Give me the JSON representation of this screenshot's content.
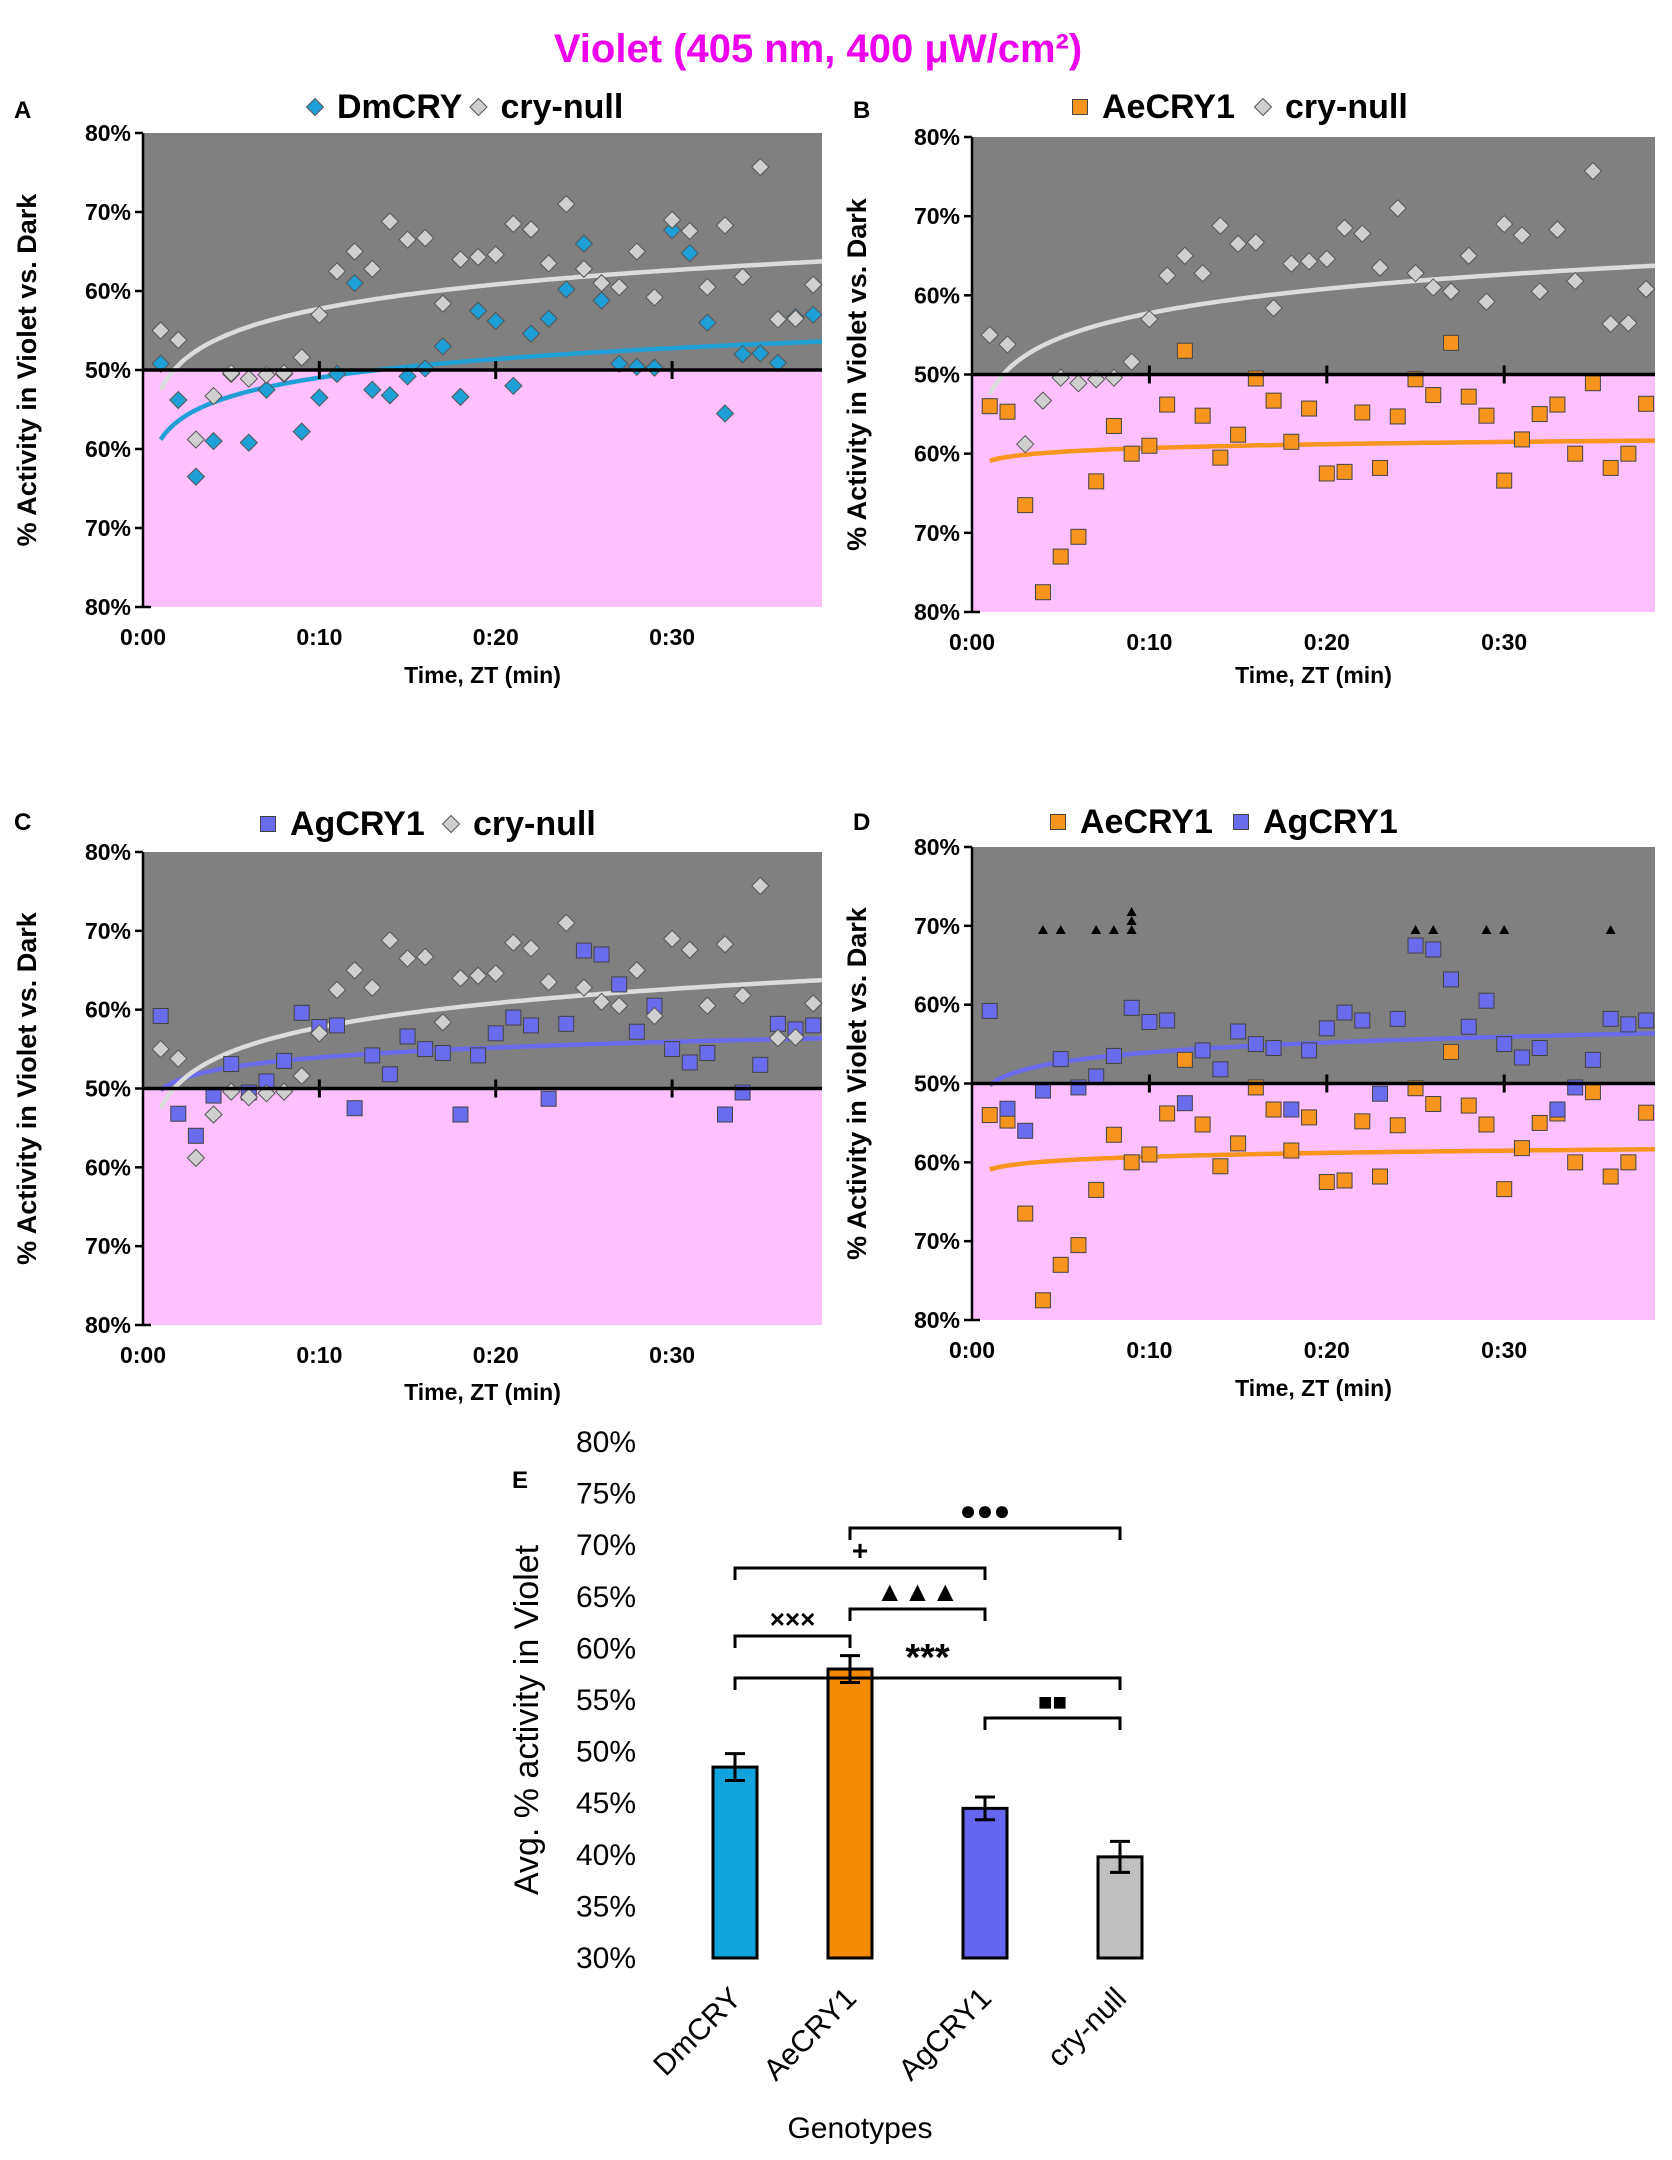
{
  "figure": {
    "title": "Violet (405 nm, 400 μW/cm²)"
  },
  "colors": {
    "title": "#ee00ee",
    "dark_region": "#808080",
    "light_region": "#ffc0ff",
    "dmcry": "#1e9fd6",
    "aecry1": "#f7941d",
    "agcry1": "#6b6bee",
    "crynull": "#cfcfcf",
    "crynull_line": "#dcdcdc",
    "dmcry_bar": "#12a3dc",
    "aecry1_bar": "#f58a06",
    "agcry1_bar": "#6565f2",
    "crynull_bar": "#c0c0c0"
  },
  "scatter_common": {
    "x_ticks": [
      "0:00",
      "0:10",
      "0:20",
      "0:30"
    ],
    "y_ticks": [
      "80%",
      "70%",
      "60%",
      "50%",
      "60%",
      "70%",
      "80%"
    ],
    "xlabel": "Time, ZT (min)",
    "ylabel": "% Activity in Violet vs. Dark"
  },
  "chart_data": [
    {
      "id": "A",
      "type": "scatter",
      "panel_label": "A",
      "legend": [
        "DmCRY",
        "cry-null"
      ],
      "x_unit": "minutes",
      "xlim": [
        0,
        38.5
      ],
      "ylim": [
        -30,
        30
      ],
      "y_note": "signed deviation from 50% baseline: above = Violet > Dark, below = Violet < Dark",
      "series": [
        {
          "name": "DmCRY",
          "marker": "diamond",
          "color_key": "dmcry",
          "x": [
            1,
            2,
            3,
            4,
            5,
            6,
            7,
            8,
            9,
            10,
            11,
            12,
            13,
            14,
            15,
            16,
            17,
            18,
            19,
            20,
            21,
            22,
            23,
            24,
            25,
            26,
            27,
            28,
            29,
            30,
            31,
            32,
            33,
            34,
            35,
            36,
            37,
            38
          ],
          "y": [
            0.8,
            -3.8,
            -13.5,
            -9,
            -0.5,
            -9.2,
            -2.5,
            -0.5,
            -7.8,
            -3.5,
            -0.5,
            11,
            -2.5,
            -3.2,
            -0.8,
            0.2,
            3,
            -3.4,
            7.5,
            6.2,
            -2,
            4.6,
            6.5,
            10.2,
            16,
            8.8,
            0.8,
            0.4,
            0.3,
            17.7,
            14.8,
            6,
            -5.5,
            2,
            2.1,
            0.9,
            6.7,
            7
          ]
        },
        {
          "name": "cry-null",
          "marker": "diamond",
          "color_key": "crynull",
          "x": [
            1,
            2,
            3,
            4,
            5,
            6,
            7,
            8,
            9,
            10,
            11,
            12,
            13,
            14,
            15,
            16,
            17,
            18,
            19,
            20,
            21,
            22,
            23,
            24,
            25,
            26,
            27,
            28,
            29,
            30,
            31,
            32,
            33,
            34,
            35,
            36,
            37,
            38
          ],
          "y": [
            5,
            3.8,
            -8.8,
            -3.3,
            -0.4,
            -1.1,
            -0.6,
            -0.4,
            1.6,
            7,
            12.5,
            15,
            12.8,
            18.8,
            16.5,
            16.7,
            8.4,
            14,
            14.3,
            14.6,
            18.5,
            17.8,
            13.5,
            21,
            12.8,
            11,
            10.5,
            15,
            9.2,
            19,
            17.6,
            10.5,
            18.3,
            11.8,
            25.7,
            6.4,
            6.5,
            10.8
          ]
        }
      ],
      "trend_lines": [
        {
          "name": "DmCRY",
          "color_key": "dmcry",
          "form": "log",
          "a": -8.8,
          "b": 3.4
        },
        {
          "name": "cry-null",
          "color_key": "crynull_line",
          "form": "log",
          "a": -2.5,
          "b": 4.45
        }
      ]
    },
    {
      "id": "B",
      "type": "scatter",
      "panel_label": "B",
      "legend": [
        "AeCRY1",
        "cry-null"
      ],
      "x_unit": "minutes",
      "xlim": [
        0,
        38.5
      ],
      "ylim": [
        -30,
        30
      ],
      "series": [
        {
          "name": "AeCRY1",
          "marker": "square",
          "color_key": "aecry1",
          "x": [
            1,
            2,
            3,
            4,
            5,
            6,
            7,
            8,
            9,
            10,
            11,
            12,
            13,
            14,
            15,
            16,
            17,
            18,
            19,
            20,
            21,
            22,
            23,
            24,
            25,
            26,
            27,
            28,
            29,
            30,
            31,
            32,
            33,
            34,
            35,
            36,
            37,
            38
          ],
          "y": [
            -4,
            -4.7,
            -16.5,
            -27.5,
            -23,
            -20.5,
            -13.5,
            -6.5,
            -10,
            -9,
            -3.8,
            3,
            -5.2,
            -10.5,
            -7.6,
            -0.5,
            -3.3,
            -8.5,
            -4.3,
            -12.5,
            -12.3,
            -4.8,
            -11.8,
            -5.3,
            -0.6,
            -2.6,
            4,
            -2.8,
            -5.2,
            -13.4,
            -8.2,
            -5,
            -3.8,
            -10,
            -1.1,
            -11.8,
            -10,
            -3.7
          ]
        },
        {
          "name": "cry-null",
          "marker": "diamond",
          "color_key": "crynull",
          "x": [
            1,
            2,
            3,
            4,
            5,
            6,
            7,
            8,
            9,
            10,
            11,
            12,
            13,
            14,
            15,
            16,
            17,
            18,
            19,
            20,
            21,
            22,
            23,
            24,
            25,
            26,
            27,
            28,
            29,
            30,
            31,
            32,
            33,
            34,
            35,
            36,
            37,
            38
          ],
          "y": [
            5,
            3.8,
            -8.8,
            -3.3,
            -0.4,
            -1.1,
            -0.6,
            -0.4,
            1.6,
            7,
            12.5,
            15,
            12.8,
            18.8,
            16.5,
            16.7,
            8.4,
            14,
            14.3,
            14.6,
            18.5,
            17.8,
            13.5,
            21,
            12.8,
            11,
            10.5,
            15,
            9.2,
            19,
            17.6,
            10.5,
            18.3,
            11.8,
            25.7,
            6.4,
            6.5,
            10.8
          ]
        }
      ],
      "trend_lines": [
        {
          "name": "AeCRY1",
          "color_key": "aecry1",
          "form": "log",
          "a": -10.9,
          "b": 0.7
        },
        {
          "name": "cry-null",
          "color_key": "crynull_line",
          "form": "log",
          "a": -2.5,
          "b": 4.45
        }
      ]
    },
    {
      "id": "C",
      "type": "scatter",
      "panel_label": "C",
      "legend": [
        "AgCRY1",
        "cry-null"
      ],
      "x_unit": "minutes",
      "xlim": [
        0,
        38.5
      ],
      "ylim": [
        -30,
        30
      ],
      "series": [
        {
          "name": "AgCRY1",
          "marker": "square",
          "color_key": "agcry1",
          "x": [
            1,
            2,
            3,
            4,
            5,
            6,
            7,
            8,
            9,
            10,
            11,
            12,
            13,
            14,
            15,
            16,
            17,
            18,
            19,
            20,
            21,
            22,
            23,
            24,
            25,
            26,
            27,
            28,
            29,
            30,
            31,
            32,
            33,
            34,
            35,
            36,
            37,
            38
          ],
          "y": [
            9.2,
            -3.2,
            -6,
            -0.9,
            3.1,
            -0.5,
            0.9,
            3.5,
            9.6,
            7.8,
            8,
            -2.5,
            4.2,
            1.8,
            6.6,
            5,
            4.5,
            -3.3,
            4.2,
            7,
            9,
            8,
            -1.3,
            8.2,
            17.5,
            17,
            13.2,
            7.2,
            10.5,
            5,
            3.3,
            4.5,
            -3.3,
            -0.5,
            3,
            8.2,
            7.5,
            8
          ]
        },
        {
          "name": "cry-null",
          "marker": "diamond",
          "color_key": "crynull",
          "x": [
            1,
            2,
            3,
            4,
            5,
            6,
            7,
            8,
            9,
            10,
            11,
            12,
            13,
            14,
            15,
            16,
            17,
            18,
            19,
            20,
            21,
            22,
            23,
            24,
            25,
            26,
            27,
            28,
            29,
            30,
            31,
            32,
            33,
            34,
            35,
            36,
            37,
            38
          ],
          "y": [
            5,
            3.8,
            -8.8,
            -3.3,
            -0.4,
            -1.1,
            -0.6,
            -0.4,
            1.6,
            7,
            12.5,
            15,
            12.8,
            18.8,
            16.5,
            16.7,
            8.4,
            14,
            14.3,
            14.6,
            18.5,
            17.8,
            13.5,
            21,
            12.8,
            11,
            10.5,
            15,
            9.2,
            19,
            17.6,
            10.5,
            18.3,
            11.8,
            25.7,
            6.4,
            6.5,
            10.8
          ]
        }
      ],
      "trend_lines": [
        {
          "name": "AgCRY1",
          "color_key": "agcry1",
          "form": "log",
          "a": -0.2,
          "b": 1.8
        },
        {
          "name": "cry-null",
          "color_key": "crynull_line",
          "form": "log",
          "a": -2.5,
          "b": 4.45
        }
      ]
    },
    {
      "id": "D",
      "type": "scatter",
      "panel_label": "D",
      "legend": [
        "AeCRY1",
        "AgCRY1"
      ],
      "x_unit": "minutes",
      "xlim": [
        0,
        38.5
      ],
      "ylim": [
        -30,
        30
      ],
      "series": [
        {
          "name": "AeCRY1",
          "marker": "square",
          "color_key": "aecry1",
          "x": [
            1,
            2,
            3,
            4,
            5,
            6,
            7,
            8,
            9,
            10,
            11,
            12,
            13,
            14,
            15,
            16,
            17,
            18,
            19,
            20,
            21,
            22,
            23,
            24,
            25,
            26,
            27,
            28,
            29,
            30,
            31,
            32,
            33,
            34,
            35,
            36,
            37,
            38
          ],
          "y": [
            -4,
            -4.7,
            -16.5,
            -27.5,
            -23,
            -20.5,
            -13.5,
            -6.5,
            -10,
            -9,
            -3.8,
            3,
            -5.2,
            -10.5,
            -7.6,
            -0.5,
            -3.3,
            -8.5,
            -4.3,
            -12.5,
            -12.3,
            -4.8,
            -11.8,
            -5.3,
            -0.6,
            -2.6,
            4,
            -2.8,
            -5.2,
            -13.4,
            -8.2,
            -5,
            -3.8,
            -10,
            -1.1,
            -11.8,
            -10,
            -3.7
          ]
        },
        {
          "name": "AgCRY1",
          "marker": "square",
          "color_key": "agcry1",
          "x": [
            1,
            2,
            3,
            4,
            5,
            6,
            7,
            8,
            9,
            10,
            11,
            12,
            13,
            14,
            15,
            16,
            17,
            18,
            19,
            20,
            21,
            22,
            23,
            24,
            25,
            26,
            27,
            28,
            29,
            30,
            31,
            32,
            33,
            34,
            35,
            36,
            37,
            38
          ],
          "y": [
            9.2,
            -3.2,
            -6,
            -0.9,
            3.1,
            -0.5,
            0.9,
            3.5,
            9.6,
            7.8,
            8,
            -2.5,
            4.2,
            1.8,
            6.6,
            5,
            4.5,
            -3.3,
            4.2,
            7,
            9,
            8,
            -1.3,
            8.2,
            17.5,
            17,
            13.2,
            7.2,
            10.5,
            5,
            3.3,
            4.5,
            -3.3,
            -0.5,
            3,
            8.2,
            7.5,
            8
          ]
        }
      ],
      "trend_lines": [
        {
          "name": "AgCRY1",
          "color_key": "agcry1",
          "form": "log",
          "a": -0.2,
          "b": 1.8
        },
        {
          "name": "AeCRY1",
          "color_key": "aecry1",
          "form": "log",
          "a": -10.9,
          "b": 0.7
        }
      ],
      "significance_markers": [
        {
          "x": 4,
          "count": 1,
          "symbol": "▲"
        },
        {
          "x": 5,
          "count": 1,
          "symbol": "▲"
        },
        {
          "x": 7,
          "count": 1,
          "symbol": "▲"
        },
        {
          "x": 8,
          "count": 1,
          "symbol": "▲"
        },
        {
          "x": 9,
          "count": 3,
          "symbol": "▲"
        },
        {
          "x": 25,
          "count": 1,
          "symbol": "▲"
        },
        {
          "x": 26,
          "count": 1,
          "symbol": "▲"
        },
        {
          "x": 29,
          "count": 1,
          "symbol": "▲"
        },
        {
          "x": 30,
          "count": 1,
          "symbol": "▲"
        },
        {
          "x": 36,
          "count": 1,
          "symbol": "▲"
        }
      ]
    },
    {
      "id": "E",
      "type": "bar",
      "panel_label": "E",
      "categories": [
        "DmCRY",
        "AeCRY1",
        "AgCRY1",
        "cry-null"
      ],
      "values": [
        48.5,
        58,
        44.5,
        39.8
      ],
      "errors": [
        1.3,
        1.3,
        1.1,
        1.5
      ],
      "color_keys": [
        "dmcry_bar",
        "aecry1_bar",
        "agcry1_bar",
        "crynull_bar"
      ],
      "ylim": [
        30,
        80
      ],
      "y_ticks": [
        "80%",
        "75%",
        "70%",
        "65%",
        "60%",
        "55%",
        "50%",
        "45%",
        "40%",
        "35%",
        "30%"
      ],
      "ylabel": "Avg. % activity in Violet",
      "xlabel": "Genotypes",
      "brackets": [
        {
          "from": 1,
          "to": 3,
          "symbol": "●●●"
        },
        {
          "from": 0,
          "to": 2,
          "symbol": "+"
        },
        {
          "from": 1,
          "to": 2,
          "symbol": "▲▲▲"
        },
        {
          "from": 0,
          "to": 1,
          "symbol": "×××"
        },
        {
          "from": 0,
          "to": 3,
          "symbol": "***"
        },
        {
          "from": 2,
          "to": 3,
          "symbol": "■■"
        }
      ]
    }
  ]
}
